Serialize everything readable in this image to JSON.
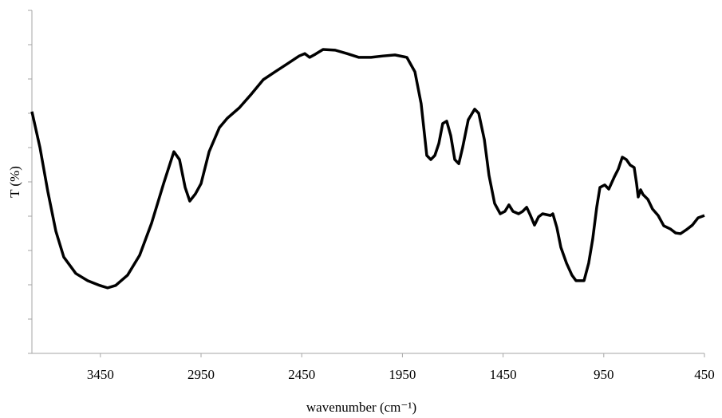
{
  "chart_data": {
    "type": "line",
    "xlabel": "wavenumber (cm⁻¹)",
    "ylabel": "T (%)",
    "xlim": [
      3790,
      450
    ],
    "ylim": [
      0,
      100
    ],
    "xticks": [
      3450,
      2950,
      2450,
      1950,
      1450,
      950,
      450
    ],
    "yticks": [
      0,
      10,
      20,
      30,
      40,
      50,
      60,
      70,
      80,
      90,
      100
    ],
    "grid": false,
    "series": [
      {
        "color": "#000000",
        "x": [
          3790,
          3750,
          3711,
          3671,
          3632,
          3572,
          3513,
          3453,
          3414,
          3374,
          3315,
          3255,
          3196,
          3136,
          3085,
          3057,
          3029,
          3006,
          2978,
          2950,
          2910,
          2859,
          2819,
          2760,
          2700,
          2641,
          2582,
          2522,
          2463,
          2435,
          2411,
          2383,
          2344,
          2284,
          2225,
          2166,
          2106,
          2047,
          1987,
          1928,
          1888,
          1857,
          1829,
          1809,
          1789,
          1769,
          1750,
          1730,
          1710,
          1690,
          1670,
          1651,
          1623,
          1591,
          1571,
          1543,
          1520,
          1492,
          1464,
          1441,
          1421,
          1401,
          1373,
          1353,
          1333,
          1314,
          1294,
          1274,
          1254,
          1215,
          1203,
          1183,
          1163,
          1135,
          1108,
          1088,
          1048,
          1025,
          1005,
          985,
          969,
          945,
          925,
          898,
          878,
          858,
          838,
          819,
          799,
          787,
          779,
          767,
          755,
          731,
          708,
          680,
          652,
          620,
          593,
          569,
          541,
          510,
          482,
          450
        ],
        "values": [
          70.5,
          60.0,
          47.2,
          35.6,
          28.1,
          23.3,
          21.2,
          19.8,
          19.1,
          19.8,
          22.8,
          28.6,
          37.9,
          49.5,
          58.8,
          56.5,
          48.4,
          44.4,
          46.5,
          49.5,
          58.8,
          65.8,
          68.6,
          71.6,
          75.6,
          79.8,
          82.1,
          84.4,
          86.7,
          87.4,
          86.3,
          87.2,
          88.6,
          88.4,
          87.4,
          86.3,
          86.3,
          86.7,
          87.0,
          86.3,
          82.1,
          72.8,
          57.7,
          56.5,
          57.7,
          61.2,
          67.0,
          67.7,
          63.5,
          56.5,
          55.3,
          60.0,
          68.1,
          71.2,
          70.0,
          62.3,
          51.9,
          43.7,
          40.7,
          41.4,
          43.3,
          41.4,
          40.7,
          41.4,
          42.6,
          40.2,
          37.4,
          39.8,
          40.7,
          40.2,
          40.7,
          36.7,
          30.9,
          26.3,
          22.8,
          21.2,
          21.2,
          26.3,
          33.3,
          42.6,
          48.4,
          49.1,
          47.9,
          51.4,
          53.7,
          57.2,
          56.5,
          54.9,
          54.2,
          49.5,
          45.6,
          47.7,
          46.3,
          44.9,
          42.1,
          40.2,
          37.2,
          36.3,
          35.1,
          34.9,
          36.0,
          37.4,
          39.5,
          40.2
        ]
      }
    ]
  }
}
